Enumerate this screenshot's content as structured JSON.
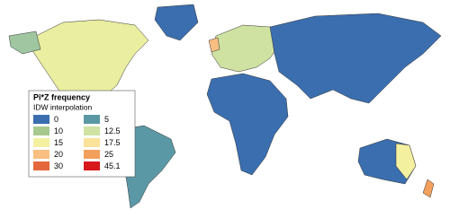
{
  "legend": {
    "title": "Pi*Z frequency",
    "subtitle": "IDW interpolation",
    "items": [
      {
        "value": 0,
        "color": "#3a6eaf"
      },
      {
        "value": 5,
        "color": "#5b98a6"
      },
      {
        "value": 10,
        "color": "#a7c98e"
      },
      {
        "value": 12.5,
        "color": "#cfe2a2"
      },
      {
        "value": 15,
        "color": "#f3f0a0"
      },
      {
        "value": 17.5,
        "color": "#fbe29a"
      },
      {
        "value": 20,
        "color": "#f8bf80"
      },
      {
        "value": 25,
        "color": "#f2a05c"
      },
      {
        "value": 30,
        "color": "#e4673d"
      },
      {
        "value": 45.1,
        "color": "#d7191c"
      }
    ]
  }
}
